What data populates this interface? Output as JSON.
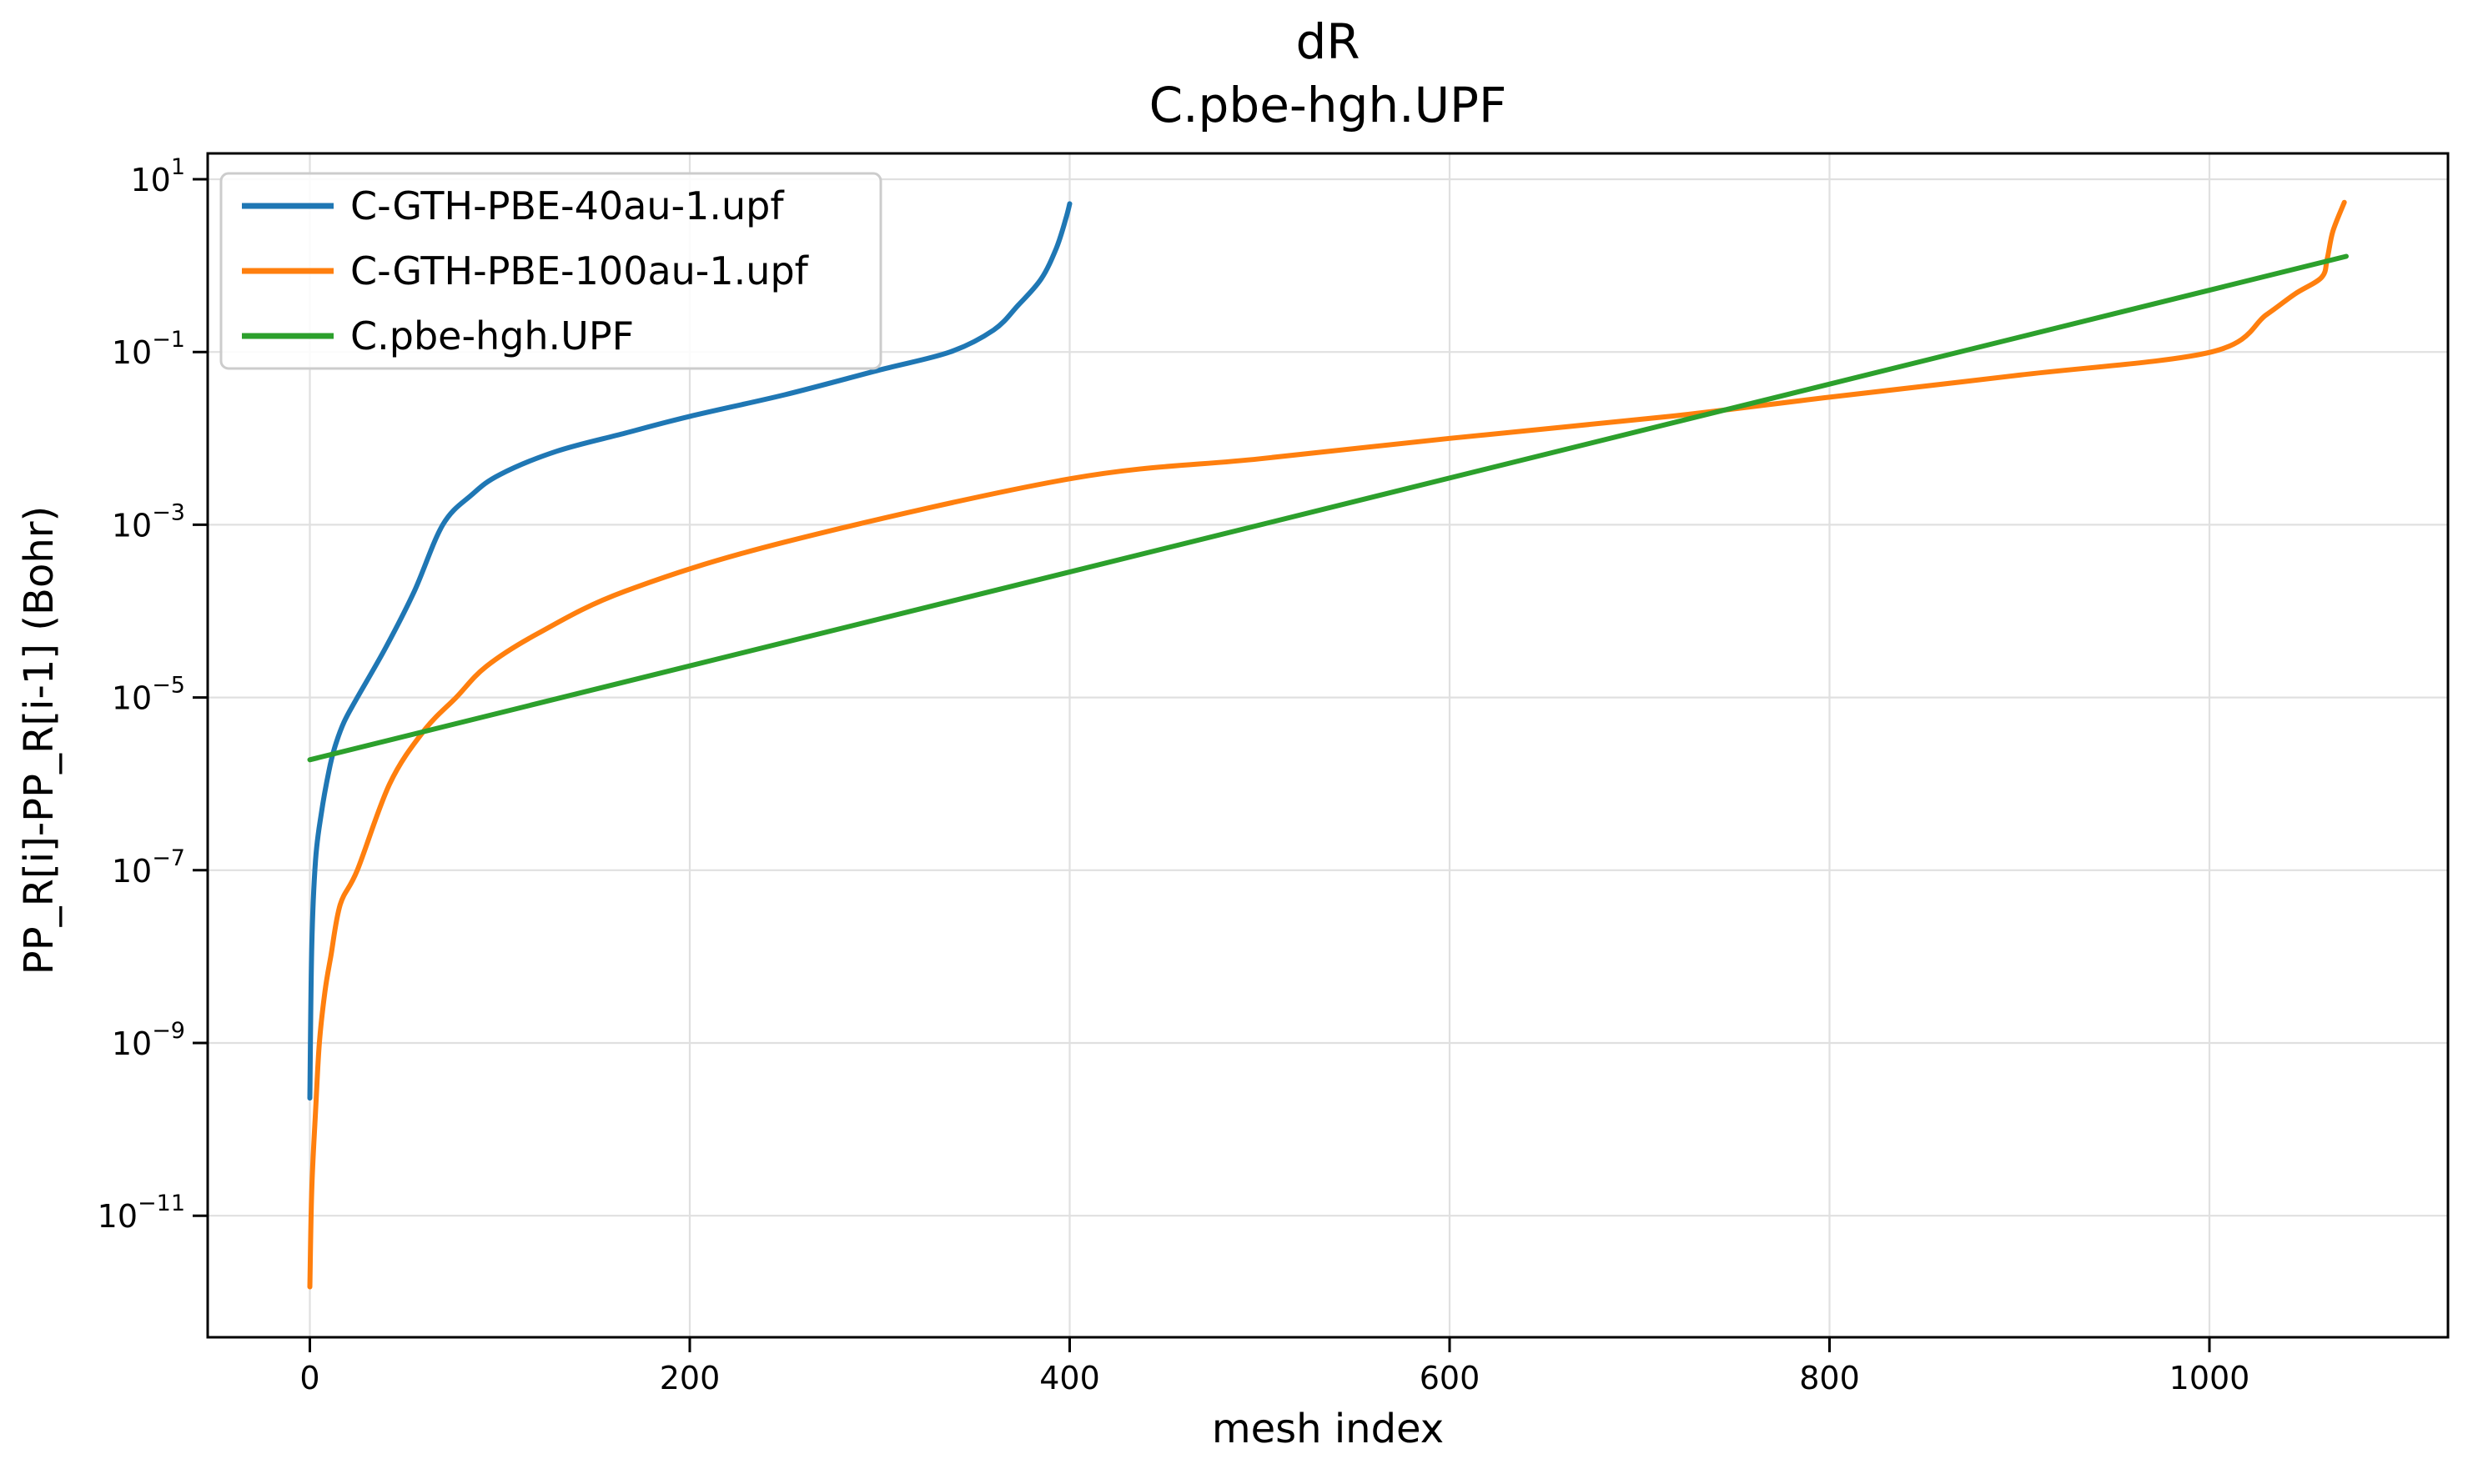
{
  "chart_data": {
    "type": "line",
    "title_line1": "dR",
    "title_line2": "C.pbe-hgh.UPF",
    "xlabel": "mesh index",
    "ylabel": "PP_R[i]-PP_R[i-1] (Bohr)",
    "x_axis": "mesh index (linear)",
    "y_axis": "log scale, Bohr",
    "xlim": [
      -53.6,
      1125.6
    ],
    "ylim_log10": [
      -12.4,
      1.3
    ],
    "grid": true,
    "legend_position": "upper left",
    "x_ticks": [
      0,
      200,
      400,
      600,
      800,
      1000
    ],
    "y_ticks": [
      {
        "exponent": 1,
        "label": "1"
      },
      {
        "exponent": -1,
        "label": "−1"
      },
      {
        "exponent": -3,
        "label": "−3"
      },
      {
        "exponent": -5,
        "label": "−5"
      },
      {
        "exponent": -7,
        "label": "−7"
      },
      {
        "exponent": -9,
        "label": "−9"
      },
      {
        "exponent": -11,
        "label": "−11"
      }
    ],
    "y_tick_base": "10",
    "series": [
      {
        "name": "C-GTH-PBE-40au-1.upf",
        "color": "#1f77b4",
        "points": [
          [
            0,
            2.3e-10
          ],
          [
            1,
            1.3e-08
          ],
          [
            3,
            1.3e-07
          ],
          [
            6,
            4.5e-07
          ],
          [
            10,
            1.4e-06
          ],
          [
            13,
            2.6e-06
          ],
          [
            18,
            5.2e-06
          ],
          [
            25,
            1e-05
          ],
          [
            40,
            3.8e-05
          ],
          [
            55,
            0.00017
          ],
          [
            70,
            0.001
          ],
          [
            85,
            0.0022
          ],
          [
            100,
            0.0038
          ],
          [
            130,
            0.0071
          ],
          [
            166,
            0.0115
          ],
          [
            200,
            0.018
          ],
          [
            250,
            0.032
          ],
          [
            300,
            0.062
          ],
          [
            337,
            0.1
          ],
          [
            360,
            0.18
          ],
          [
            373,
            0.35
          ],
          [
            385,
            0.7
          ],
          [
            393,
            1.6
          ],
          [
            398,
            3.5
          ],
          [
            400,
            5.2
          ]
        ]
      },
      {
        "name": "C-GTH-PBE-100au-1.upf",
        "color": "#ff7f0e",
        "points": [
          [
            0,
            1.5e-12
          ],
          [
            1,
            2e-11
          ],
          [
            3,
            1.6e-10
          ],
          [
            5,
            1e-09
          ],
          [
            8,
            4e-09
          ],
          [
            11,
            1e-08
          ],
          [
            16,
            4e-08
          ],
          [
            25,
            1e-07
          ],
          [
            42,
            1e-06
          ],
          [
            60,
            4.1e-06
          ],
          [
            77,
            1e-05
          ],
          [
            93,
            2.3e-05
          ],
          [
            120,
            5.5e-05
          ],
          [
            166,
            0.00017
          ],
          [
            250,
            0.00063
          ],
          [
            400,
            0.0034
          ],
          [
            500,
            0.0058
          ],
          [
            600,
            0.01
          ],
          [
            716,
            0.018
          ],
          [
            800,
            0.03
          ],
          [
            900,
            0.054
          ],
          [
            1001,
            0.1
          ],
          [
            1030,
            0.27
          ],
          [
            1045,
            0.47
          ],
          [
            1059,
            0.73
          ],
          [
            1062,
            1.2
          ],
          [
            1065,
            2.5
          ],
          [
            1071,
            5.4
          ]
        ]
      },
      {
        "name": "C.pbe-hgh.UPF",
        "color": "#2ca02c",
        "points": [
          [
            0,
            1.9e-06
          ],
          [
            1072,
            1.28
          ]
        ]
      }
    ]
  }
}
